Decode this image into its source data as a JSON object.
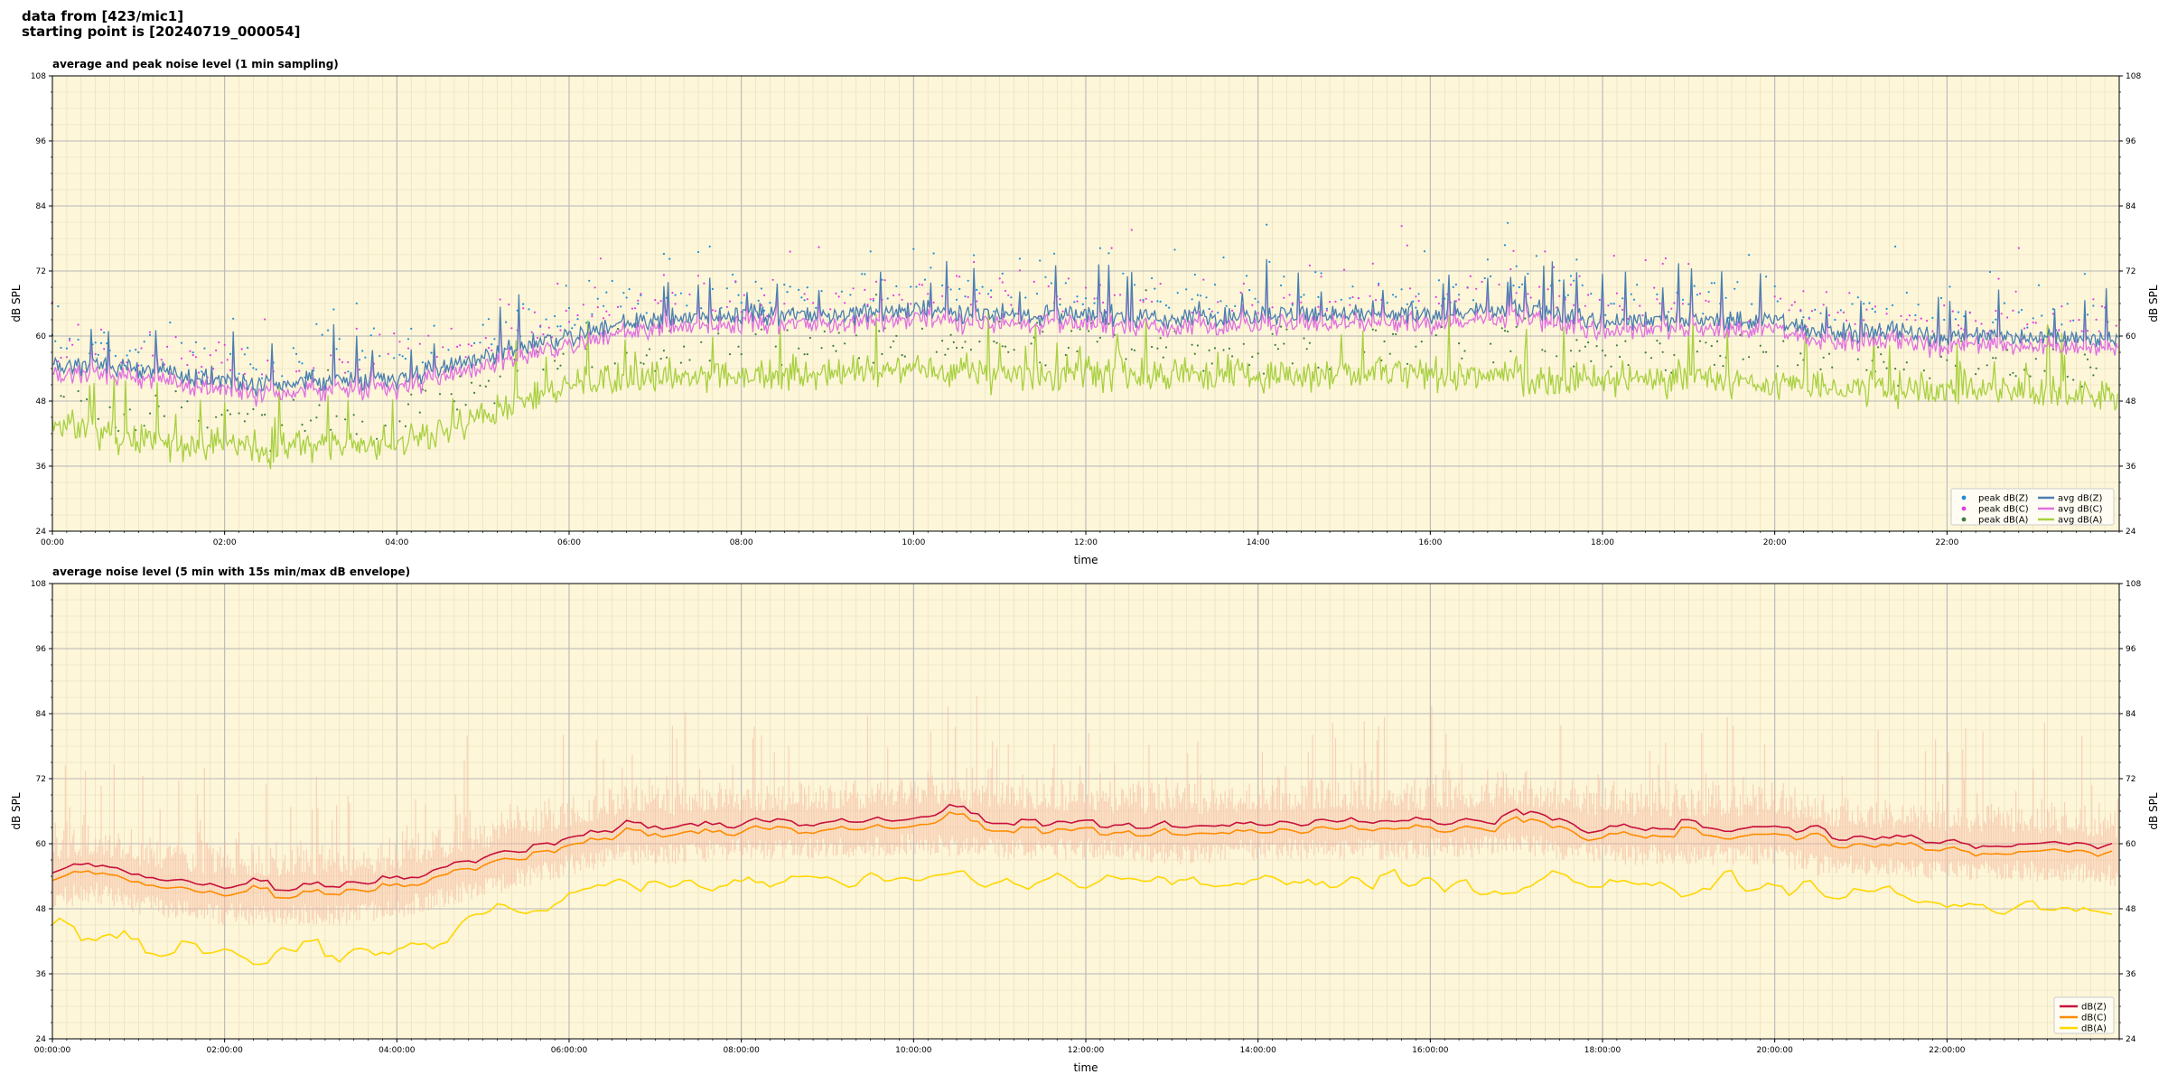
{
  "header": {
    "line1": "data from [423/mic1]",
    "line2": "starting point is [20240719_000054]"
  },
  "colors": {
    "background": "#fdf6d9",
    "peak_z": "#1f8fd6",
    "peak_c": "#e33be3",
    "peak_a": "#3f7f3f",
    "avg_z": "#4a7fb0",
    "avg_c": "#e070e0",
    "avg_a": "#a8d040",
    "env_z": "#c8103c",
    "env_c": "#ff8c00",
    "env_a": "#ffd700",
    "envelope_band": "#f5b49a"
  },
  "chart_data": [
    {
      "type": "line",
      "title": "average and peak noise level (1 min sampling)",
      "xlabel": "time",
      "ylabel": "dB SPL",
      "ylim": [
        24,
        108
      ],
      "xlim_hours": [
        0,
        24
      ],
      "yticks": [
        24,
        36,
        48,
        60,
        72,
        84,
        96,
        108
      ],
      "xtick_labels": [
        "00:00",
        "02:00",
        "04:00",
        "06:00",
        "08:00",
        "10:00",
        "12:00",
        "14:00",
        "16:00",
        "18:00",
        "20:00",
        "22:00"
      ],
      "grid": true,
      "legend_position": "lower right",
      "legend_columns": 2,
      "series": [
        {
          "name": "peak dB(Z)",
          "kind": "scatter"
        },
        {
          "name": "peak dB(C)",
          "kind": "scatter"
        },
        {
          "name": "peak dB(A)",
          "kind": "scatter"
        },
        {
          "name": "avg dB(Z)",
          "kind": "line"
        },
        {
          "name": "avg dB(C)",
          "kind": "line"
        },
        {
          "name": "avg dB(A)",
          "kind": "line"
        }
      ],
      "profile_x_hours": [
        0,
        0.5,
        1,
        1.5,
        2,
        2.5,
        3,
        3.5,
        4,
        4.5,
        5,
        5.5,
        6,
        6.5,
        7,
        8,
        9,
        10,
        11,
        12,
        13,
        14,
        15,
        16,
        17,
        17.5,
        18,
        19,
        20,
        20.5,
        21,
        22,
        23,
        24
      ],
      "profile_avg_z": [
        54,
        55,
        54,
        53,
        52,
        51,
        52,
        52,
        52,
        54,
        56,
        58,
        60,
        62,
        63,
        64,
        64,
        65,
        64,
        64,
        63,
        64,
        64,
        64,
        65,
        64,
        63,
        63,
        63,
        61,
        61,
        60,
        60,
        59
      ],
      "profile_avg_a": [
        44,
        42,
        41,
        40,
        40,
        39,
        40,
        40,
        40,
        42,
        45,
        48,
        51,
        52,
        52,
        53,
        53,
        54,
        53,
        53,
        53,
        53,
        53,
        53,
        53,
        52,
        52,
        52,
        51,
        51,
        50,
        50,
        50,
        49
      ]
    },
    {
      "type": "line",
      "title": "average noise level (5 min with 15s min/max dB envelope)",
      "xlabel": "time",
      "ylabel": "dB SPL",
      "ylim": [
        24,
        108
      ],
      "xlim_hours": [
        0,
        24
      ],
      "yticks": [
        24,
        36,
        48,
        60,
        72,
        84,
        96,
        108
      ],
      "xtick_labels": [
        "00:00:00",
        "02:00:00",
        "04:00:00",
        "06:00:00",
        "08:00:00",
        "10:00:00",
        "12:00:00",
        "14:00:00",
        "16:00:00",
        "18:00:00",
        "20:00:00",
        "22:00:00"
      ],
      "grid": true,
      "legend_position": "lower right",
      "legend_columns": 1,
      "series": [
        {
          "name": "dB(Z)",
          "kind": "line"
        },
        {
          "name": "dB(C)",
          "kind": "line"
        },
        {
          "name": "dB(A)",
          "kind": "line"
        }
      ],
      "profile_x_hours": [
        0,
        0.5,
        1,
        1.5,
        2,
        2.5,
        3,
        3.5,
        4,
        4.5,
        5,
        5.5,
        6,
        6.5,
        7,
        8,
        9,
        10,
        11,
        12,
        13,
        14,
        15,
        16,
        17,
        17.5,
        18,
        19,
        20,
        20.5,
        21,
        22,
        23,
        24
      ],
      "profile_z": [
        55,
        56,
        54,
        53,
        52,
        52,
        52,
        52,
        53,
        55,
        57,
        59,
        61,
        63,
        63,
        64,
        64,
        65,
        64,
        64,
        63,
        64,
        64,
        64,
        65,
        64,
        63,
        63,
        63,
        61,
        61,
        60,
        60,
        59
      ],
      "profile_a": [
        44,
        42,
        41,
        40,
        39,
        38,
        40,
        39,
        40,
        42,
        45,
        48,
        50,
        52,
        52,
        53,
        53,
        54,
        53,
        53,
        52,
        53,
        53,
        53,
        52,
        52,
        52,
        52,
        51,
        51,
        50,
        49,
        48,
        47
      ]
    }
  ]
}
